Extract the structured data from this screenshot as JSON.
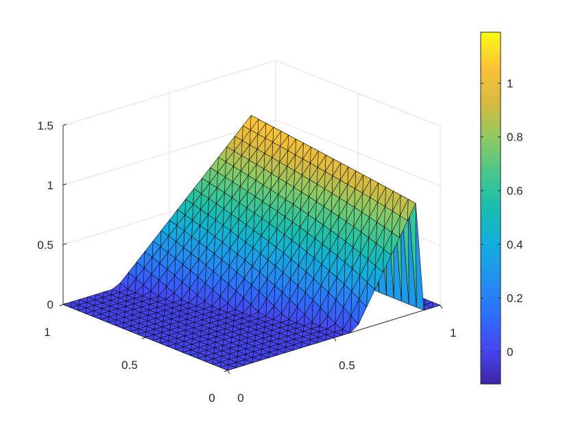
{
  "chart_data": {
    "type": "surface",
    "title": "",
    "xlabel": "",
    "ylabel": "",
    "zlabel": "",
    "xlim": [
      0,
      1
    ],
    "ylim": [
      0,
      1
    ],
    "zlim": [
      0,
      1.5
    ],
    "view": "3d-perspective",
    "grid": true,
    "colormap": "parula",
    "mesh": "triangulated",
    "surface_profile": {
      "description_points": [
        {
          "x": 0.0,
          "z_at_y1": 0.0,
          "z_at_y0": 0.0
        },
        {
          "x": 0.25,
          "z_at_y1": 0.0,
          "z_at_y0": 0.0
        },
        {
          "x": 0.5,
          "z_at_y1": 0.5,
          "z_at_y0": 0.0
        },
        {
          "x": 0.75,
          "z_at_y1": 1.0,
          "z_at_y0": 0.5
        },
        {
          "x": 0.88,
          "z_at_y1": 1.12,
          "z_at_y0": 0.95
        },
        {
          "x": 0.9,
          "z_at_y1": 0.0,
          "z_at_y0": 0.0
        },
        {
          "x": 1.0,
          "z_at_y1": 0.0,
          "z_at_y0": 0.0
        }
      ]
    },
    "ticks": {
      "x": [
        "0",
        "0.5",
        "1"
      ],
      "y": [
        "0",
        "0.5",
        "1"
      ],
      "z": [
        "0",
        "0.5",
        "1",
        "1.5"
      ]
    },
    "colorbar": {
      "clim": [
        -0.12,
        1.19
      ],
      "ticks": [
        {
          "value": 0,
          "label": "0"
        },
        {
          "value": 0.2,
          "label": "0.2"
        },
        {
          "value": 0.4,
          "label": "0.4"
        },
        {
          "value": 0.6,
          "label": "0.6"
        },
        {
          "value": 0.8,
          "label": "0.8"
        },
        {
          "value": 1,
          "label": "1"
        }
      ],
      "placement": "right"
    }
  }
}
